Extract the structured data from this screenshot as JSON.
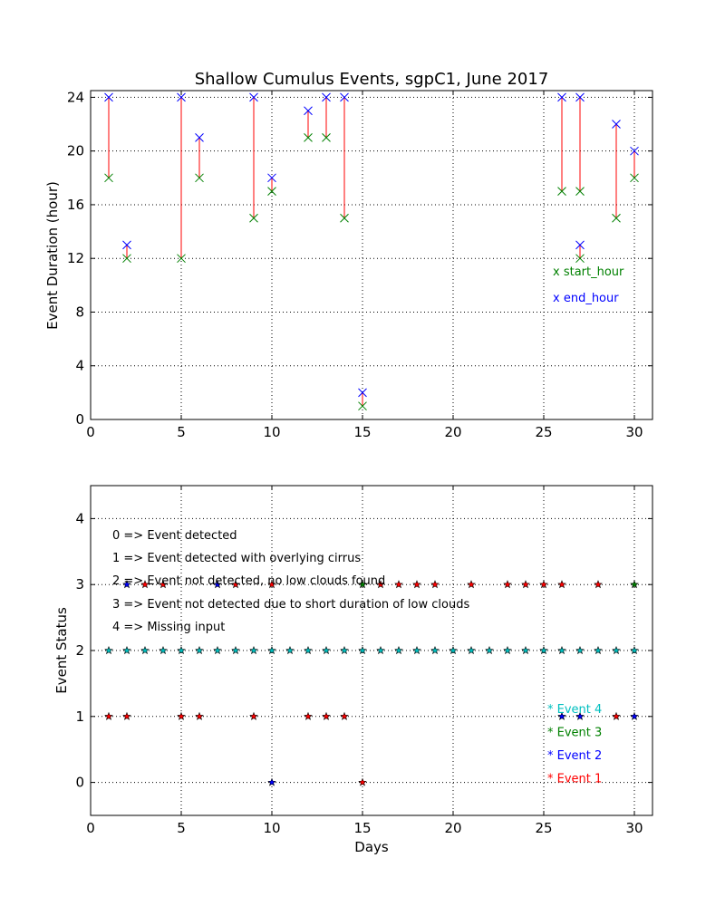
{
  "colors": {
    "start": "#008000",
    "end": "#0000ff",
    "segment": "#ff0000",
    "event1": "#ff0000",
    "event2": "#0000ff",
    "event3": "#008000",
    "event4": "#00bfbf",
    "axis": "#000000",
    "grid": "#000000"
  },
  "chart_data": [
    {
      "type": "scatter",
      "title": "Shallow Cumulus Events, sgpC1, June 2017",
      "xlabel": "",
      "ylabel": "Event Duration (hour)",
      "xlim": [
        0,
        31
      ],
      "ylim": [
        0,
        24.5
      ],
      "xticks": [
        0,
        5,
        10,
        15,
        20,
        25,
        30
      ],
      "yticks": [
        0,
        4,
        8,
        12,
        16,
        20,
        24
      ],
      "grid": true,
      "legend_position": "right, below middle",
      "legend": [
        {
          "marker": "x",
          "label": "start_hour",
          "color_key": "start"
        },
        {
          "marker": "x",
          "label": "end_hour",
          "color_key": "end"
        }
      ],
      "series": [
        {
          "name": "start_hour",
          "x": [
            1,
            2,
            5,
            6,
            9,
            10,
            12,
            13,
            14,
            15,
            26,
            27,
            27,
            29,
            30
          ],
          "y": [
            18,
            12,
            12,
            18,
            15,
            17,
            21,
            21,
            15,
            1,
            17,
            17,
            12,
            15,
            18
          ]
        },
        {
          "name": "end_hour",
          "x": [
            1,
            2,
            5,
            6,
            9,
            10,
            12,
            13,
            14,
            15,
            26,
            27,
            27,
            29,
            30
          ],
          "y": [
            24,
            13,
            24,
            21,
            24,
            18,
            23,
            24,
            24,
            2,
            24,
            24,
            13,
            22,
            20
          ]
        }
      ]
    },
    {
      "type": "scatter",
      "title": "",
      "xlabel": "Days",
      "ylabel": "Event Status",
      "xlim": [
        0,
        31
      ],
      "ylim": [
        -0.5,
        4.5
      ],
      "xticks": [
        0,
        5,
        10,
        15,
        20,
        25,
        30
      ],
      "yticks": [
        0,
        1,
        2,
        3,
        4
      ],
      "grid": true,
      "legend_position": "bottom-right",
      "annotations": [
        "0 => Event detected",
        "1 => Event detected with overlying cirrus",
        "2 => Event not detected, no low clouds found",
        "3 => Event not detected due to short duration of low clouds",
        "4 => Missing input"
      ],
      "legend": [
        {
          "marker": "*",
          "label": "Event 4",
          "color_key": "event4"
        },
        {
          "marker": "*",
          "label": "Event 3",
          "color_key": "event3"
        },
        {
          "marker": "*",
          "label": "Event 2",
          "color_key": "event2"
        },
        {
          "marker": "*",
          "label": "Event 1",
          "color_key": "event1"
        }
      ],
      "series": [
        {
          "name": "Event 1",
          "color_key": "event1",
          "x": [
            1,
            2,
            3,
            4,
            5,
            6,
            8,
            9,
            10,
            12,
            13,
            14,
            15,
            16,
            17,
            18,
            19,
            21,
            23,
            24,
            25,
            26,
            28,
            29
          ],
          "y": [
            1,
            1,
            3,
            3,
            1,
            1,
            3,
            1,
            3,
            1,
            1,
            1,
            0,
            3,
            3,
            3,
            3,
            3,
            3,
            3,
            3,
            3,
            3,
            1
          ]
        },
        {
          "name": "Event 2",
          "color_key": "event2",
          "x": [
            2,
            7,
            10,
            26,
            27,
            30
          ],
          "y": [
            3,
            3,
            0,
            1,
            1,
            1
          ]
        },
        {
          "name": "Event 3",
          "color_key": "event3",
          "x": [
            15,
            30
          ],
          "y": [
            3,
            3
          ]
        },
        {
          "name": "Event 4",
          "color_key": "event4",
          "x": [
            1,
            2,
            3,
            4,
            5,
            6,
            7,
            8,
            9,
            10,
            11,
            12,
            13,
            14,
            15,
            16,
            17,
            18,
            19,
            20,
            21,
            22,
            23,
            24,
            25,
            26,
            27,
            28,
            29,
            30
          ],
          "y": [
            2,
            2,
            2,
            2,
            2,
            2,
            2,
            2,
            2,
            2,
            2,
            2,
            2,
            2,
            2,
            2,
            2,
            2,
            2,
            2,
            2,
            2,
            2,
            2,
            2,
            2,
            2,
            2,
            2,
            2
          ]
        }
      ]
    }
  ]
}
